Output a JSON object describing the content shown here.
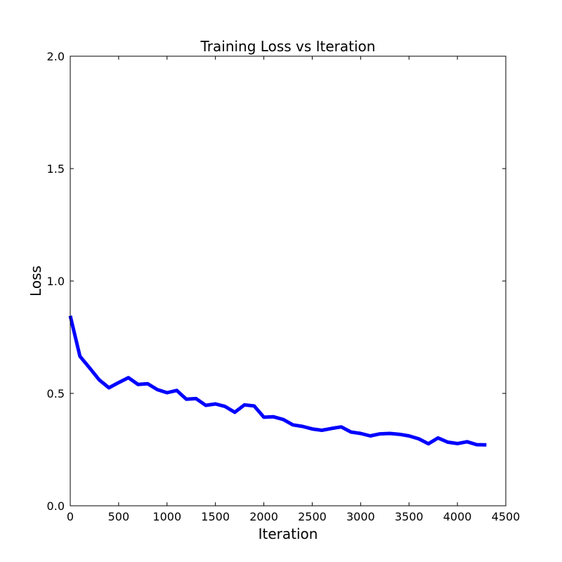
{
  "chart_data": {
    "type": "line",
    "title": "Training Loss vs Iteration",
    "xlabel": "Iteration",
    "ylabel": "Loss",
    "xlim": [
      0,
      4500
    ],
    "ylim": [
      0.0,
      2.0
    ],
    "xticks": [
      0,
      500,
      1000,
      1500,
      2000,
      2500,
      3000,
      3500,
      4000,
      4500
    ],
    "yticks": [
      0.0,
      0.5,
      1.0,
      1.5,
      2.0
    ],
    "xtick_labels": [
      "0",
      "500",
      "1000",
      "1500",
      "2000",
      "2500",
      "3000",
      "3500",
      "4000",
      "4500"
    ],
    "ytick_labels": [
      "0.0",
      "0.5",
      "1.0",
      "1.5",
      "2.0"
    ],
    "grid": false,
    "series": [
      {
        "color": "#0000ff",
        "x": [
          0,
          100,
          200,
          300,
          400,
          500,
          600,
          700,
          800,
          900,
          1000,
          1100,
          1200,
          1300,
          1400,
          1500,
          1600,
          1700,
          1800,
          1900,
          2000,
          2100,
          2200,
          2300,
          2400,
          2500,
          2600,
          2700,
          2800,
          2900,
          3000,
          3100,
          3200,
          3300,
          3400,
          3500,
          3600,
          3700,
          3800,
          3900,
          4000,
          4100,
          4200,
          4300
        ],
        "y": [
          0.845,
          0.665,
          0.613,
          0.56,
          0.525,
          0.548,
          0.57,
          0.54,
          0.543,
          0.517,
          0.503,
          0.513,
          0.474,
          0.477,
          0.447,
          0.453,
          0.442,
          0.416,
          0.449,
          0.444,
          0.394,
          0.396,
          0.384,
          0.36,
          0.353,
          0.342,
          0.336,
          0.344,
          0.351,
          0.328,
          0.322,
          0.311,
          0.32,
          0.322,
          0.318,
          0.311,
          0.298,
          0.276,
          0.302,
          0.283,
          0.277,
          0.285,
          0.272,
          0.271
        ]
      }
    ]
  }
}
